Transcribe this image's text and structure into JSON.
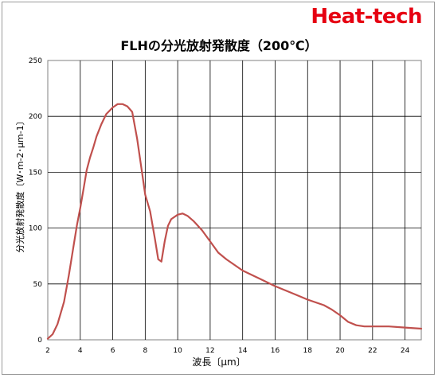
{
  "brand": "Heat-tech",
  "chart_data": {
    "type": "line",
    "title": "FLHの分光放射発散度（200℃）",
    "xlabel": "波長〔μm〕",
    "ylabel": "分光放射発散度〔W･m-2･μm-1〕",
    "xlim": [
      2,
      25
    ],
    "ylim": [
      0,
      250
    ],
    "x_ticks": [
      2,
      4,
      6,
      8,
      10,
      12,
      14,
      16,
      18,
      20,
      22,
      24
    ],
    "x_gridlines": [
      4,
      6,
      8,
      10,
      12,
      14,
      16,
      18,
      20,
      22,
      24
    ],
    "y_ticks": [
      0,
      50,
      100,
      150,
      200,
      250
    ],
    "grid": true,
    "legend": "none",
    "line_color": "#c0504d",
    "series": [
      {
        "x": [
          2.0,
          2.3,
          2.6,
          3.0,
          3.3,
          3.6,
          3.8,
          4.0,
          4.2,
          4.4,
          4.6,
          4.8,
          5.0,
          5.3,
          5.6,
          6.0,
          6.3,
          6.6,
          6.9,
          7.2,
          7.5,
          7.8,
          8.0,
          8.3,
          8.6,
          8.8,
          9.0,
          9.2,
          9.4,
          9.6,
          10.0,
          10.3,
          10.6,
          11.0,
          11.5,
          12.0,
          12.5,
          13.0,
          14.0,
          15.0,
          16.0,
          17.0,
          18.0,
          19.0,
          19.5,
          20.0,
          20.5,
          21.0,
          21.5,
          22.0,
          23.0,
          24.0,
          25.0
        ],
        "y": [
          1,
          5,
          14,
          34,
          58,
          85,
          103,
          118,
          135,
          152,
          163,
          172,
          182,
          193,
          202,
          208,
          211,
          211,
          209,
          204,
          180,
          150,
          130,
          115,
          90,
          72,
          70,
          88,
          102,
          108,
          112,
          113,
          111,
          106,
          98,
          88,
          78,
          72,
          62,
          55,
          48,
          42,
          36,
          31,
          27,
          22,
          16,
          13,
          12,
          12,
          12,
          11,
          10
        ]
      }
    ]
  }
}
